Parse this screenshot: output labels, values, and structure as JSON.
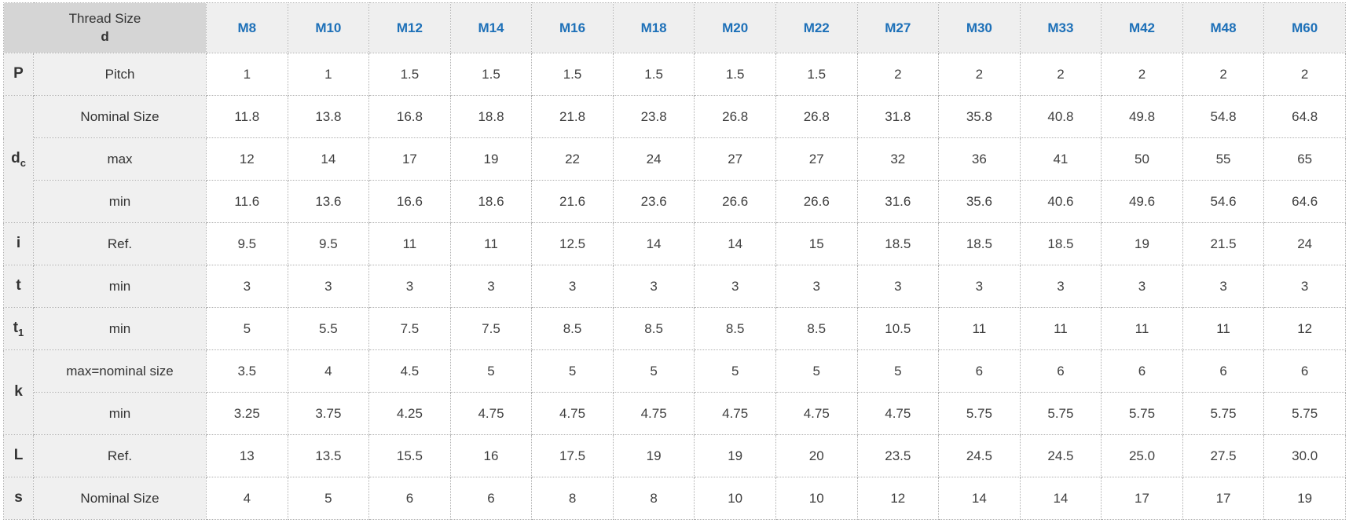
{
  "accent_colors": {
    "header_corner_bg": "#d5d5d5",
    "header_bg": "#efefef",
    "label_bg": "#f0f0f0",
    "thread_size_blue": "#1d70b8",
    "border_dotted": "#b0b0b0"
  },
  "table": {
    "corner": {
      "line1": "Thread Size",
      "line2": "d"
    },
    "thread_sizes": [
      "M8",
      "M10",
      "M12",
      "M14",
      "M16",
      "M18",
      "M20",
      "M22",
      "M27",
      "M30",
      "M33",
      "M42",
      "M48",
      "M60"
    ],
    "rows": [
      {
        "symbol": "P",
        "sub": "",
        "label": "Pitch",
        "values": [
          "1",
          "1",
          "1.5",
          "1.5",
          "1.5",
          "1.5",
          "1.5",
          "1.5",
          "2",
          "2",
          "2",
          "2",
          "2",
          "2"
        ]
      },
      {
        "symbol": "d",
        "sub": "c",
        "label": "Nominal Size",
        "values": [
          "11.8",
          "13.8",
          "16.8",
          "18.8",
          "21.8",
          "23.8",
          "26.8",
          "26.8",
          "31.8",
          "35.8",
          "40.8",
          "49.8",
          "54.8",
          "64.8"
        ]
      },
      {
        "symbol": "",
        "sub": "",
        "label": "max",
        "values": [
          "12",
          "14",
          "17",
          "19",
          "22",
          "24",
          "27",
          "27",
          "32",
          "36",
          "41",
          "50",
          "55",
          "65"
        ]
      },
      {
        "symbol": "",
        "sub": "",
        "label": "min",
        "values": [
          "11.6",
          "13.6",
          "16.6",
          "18.6",
          "21.6",
          "23.6",
          "26.6",
          "26.6",
          "31.6",
          "35.6",
          "40.6",
          "49.6",
          "54.6",
          "64.6"
        ]
      },
      {
        "symbol": "i",
        "sub": "",
        "label": "Ref.",
        "values": [
          "9.5",
          "9.5",
          "11",
          "11",
          "12.5",
          "14",
          "14",
          "15",
          "18.5",
          "18.5",
          "18.5",
          "19",
          "21.5",
          "24"
        ]
      },
      {
        "symbol": "t",
        "sub": "",
        "label": "min",
        "values": [
          "3",
          "3",
          "3",
          "3",
          "3",
          "3",
          "3",
          "3",
          "3",
          "3",
          "3",
          "3",
          "3",
          "3"
        ]
      },
      {
        "symbol": "t",
        "sub": "1",
        "label": "min",
        "values": [
          "5",
          "5.5",
          "7.5",
          "7.5",
          "8.5",
          "8.5",
          "8.5",
          "8.5",
          "10.5",
          "11",
          "11",
          "11",
          "11",
          "12"
        ]
      },
      {
        "symbol": "k",
        "sub": "",
        "label": "max=nominal size",
        "values": [
          "3.5",
          "4",
          "4.5",
          "5",
          "5",
          "5",
          "5",
          "5",
          "5",
          "6",
          "6",
          "6",
          "6",
          "6"
        ]
      },
      {
        "symbol": "",
        "sub": "",
        "label": "min",
        "values": [
          "3.25",
          "3.75",
          "4.25",
          "4.75",
          "4.75",
          "4.75",
          "4.75",
          "4.75",
          "4.75",
          "5.75",
          "5.75",
          "5.75",
          "5.75",
          "5.75"
        ]
      },
      {
        "symbol": "L",
        "sub": "",
        "label": "Ref.",
        "values": [
          "13",
          "13.5",
          "15.5",
          "16",
          "17.5",
          "19",
          "19",
          "20",
          "23.5",
          "24.5",
          "24.5",
          "25.0",
          "27.5",
          "30.0"
        ]
      },
      {
        "symbol": "s",
        "sub": "",
        "label": "Nominal Size",
        "values": [
          "4",
          "5",
          "6",
          "6",
          "8",
          "8",
          "10",
          "10",
          "12",
          "14",
          "14",
          "17",
          "17",
          "19"
        ]
      }
    ]
  },
  "chart_data": {
    "type": "table",
    "title": "Thread Size d",
    "categories": [
      "M8",
      "M10",
      "M12",
      "M14",
      "M16",
      "M18",
      "M20",
      "M22",
      "M27",
      "M30",
      "M33",
      "M42",
      "M48",
      "M60"
    ],
    "series": [
      {
        "name": "P Pitch",
        "values": [
          1,
          1,
          1.5,
          1.5,
          1.5,
          1.5,
          1.5,
          1.5,
          2,
          2,
          2,
          2,
          2,
          2
        ]
      },
      {
        "name": "dc Nominal Size",
        "values": [
          11.8,
          13.8,
          16.8,
          18.8,
          21.8,
          23.8,
          26.8,
          26.8,
          31.8,
          35.8,
          40.8,
          49.8,
          54.8,
          64.8
        ]
      },
      {
        "name": "dc max",
        "values": [
          12,
          14,
          17,
          19,
          22,
          24,
          27,
          27,
          32,
          36,
          41,
          50,
          55,
          65
        ]
      },
      {
        "name": "dc min",
        "values": [
          11.6,
          13.6,
          16.6,
          18.6,
          21.6,
          23.6,
          26.6,
          26.6,
          31.6,
          35.6,
          40.6,
          49.6,
          54.6,
          64.6
        ]
      },
      {
        "name": "i Ref.",
        "values": [
          9.5,
          9.5,
          11,
          11,
          12.5,
          14,
          14,
          15,
          18.5,
          18.5,
          18.5,
          19,
          21.5,
          24
        ]
      },
      {
        "name": "t min",
        "values": [
          3,
          3,
          3,
          3,
          3,
          3,
          3,
          3,
          3,
          3,
          3,
          3,
          3,
          3
        ]
      },
      {
        "name": "t1 min",
        "values": [
          5,
          5.5,
          7.5,
          7.5,
          8.5,
          8.5,
          8.5,
          8.5,
          10.5,
          11,
          11,
          11,
          11,
          12
        ]
      },
      {
        "name": "k max=nominal size",
        "values": [
          3.5,
          4,
          4.5,
          5,
          5,
          5,
          5,
          5,
          5,
          6,
          6,
          6,
          6,
          6
        ]
      },
      {
        "name": "k min",
        "values": [
          3.25,
          3.75,
          4.25,
          4.75,
          4.75,
          4.75,
          4.75,
          4.75,
          4.75,
          5.75,
          5.75,
          5.75,
          5.75,
          5.75
        ]
      },
      {
        "name": "L Ref.",
        "values": [
          13,
          13.5,
          15.5,
          16,
          17.5,
          19,
          19,
          20,
          23.5,
          24.5,
          24.5,
          25.0,
          27.5,
          30.0
        ]
      },
      {
        "name": "s Nominal Size",
        "values": [
          4,
          5,
          6,
          6,
          8,
          8,
          10,
          10,
          12,
          14,
          14,
          17,
          17,
          19
        ]
      }
    ]
  }
}
